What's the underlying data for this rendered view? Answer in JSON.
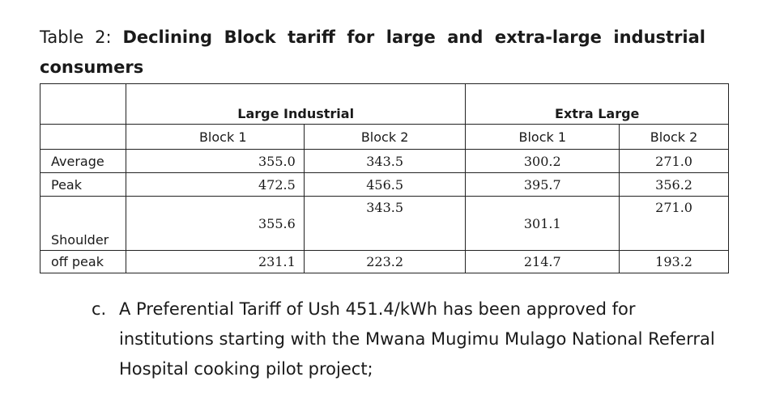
{
  "caption": {
    "prefix": "Table 2:",
    "title": "Declining Block tariff for large and extra-large industrial consumers"
  },
  "table": {
    "groups": [
      "Large Industrial",
      "Extra Large"
    ],
    "blocks": [
      "Block 1",
      "Block 2",
      "Block 1",
      "Block 2"
    ],
    "rows": [
      {
        "label": "Average",
        "values": [
          "355.0",
          "343.5",
          "300.2",
          "271.0"
        ]
      },
      {
        "label": "Peak",
        "values": [
          "472.5",
          "456.5",
          "395.7",
          "356.2"
        ]
      },
      {
        "label": "Shoulder",
        "values": [
          "355.6",
          "343.5",
          "301.1",
          "271.0"
        ]
      },
      {
        "label": "off peak",
        "values": [
          "231.1",
          "223.2",
          "214.7",
          "193.2"
        ]
      }
    ]
  },
  "list_item": {
    "marker": "c.",
    "text": "A Preferential Tariff of Ush 451.4/kWh has been approved for institutions starting with the Mwana Mugimu Mulago National Referral Hospital cooking pilot project;"
  }
}
